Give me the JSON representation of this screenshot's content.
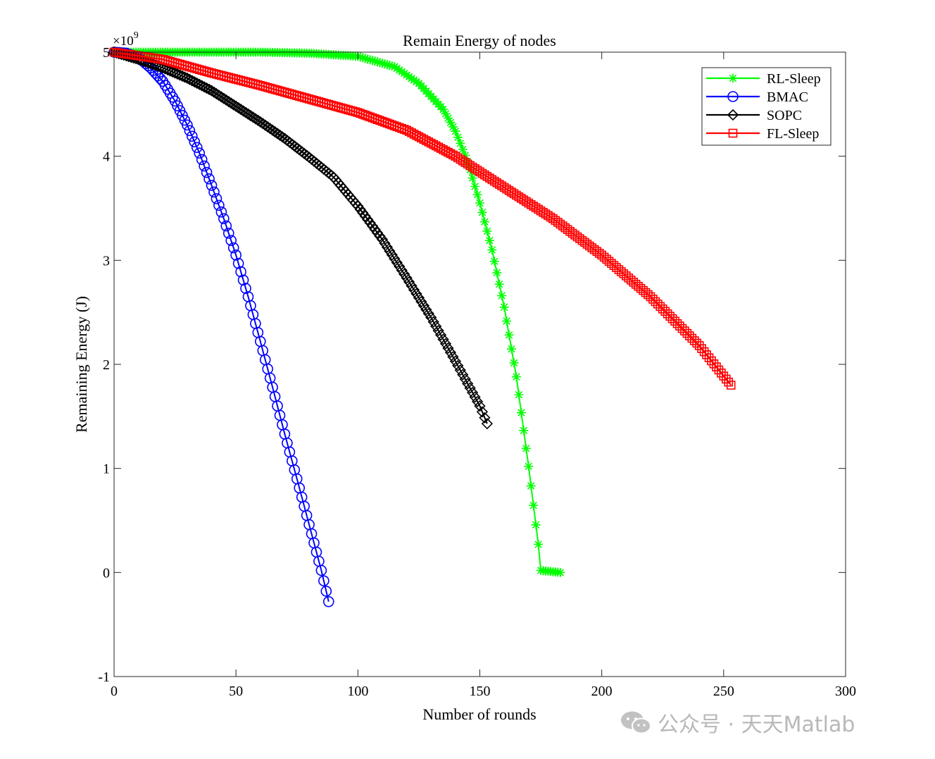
{
  "chart_data": {
    "type": "line",
    "title": "Remain Energy of nodes",
    "xlabel": "Number of rounds",
    "ylabel": "Remaining Energy (J)",
    "y_exponent_label": "×10",
    "y_exponent_power": "9",
    "xlim": [
      0,
      300
    ],
    "ylim": [
      -1,
      5
    ],
    "xticks": [
      0,
      50,
      100,
      150,
      200,
      250,
      300
    ],
    "yticks": [
      -1,
      0,
      1,
      2,
      3,
      4,
      5
    ],
    "xtick_labels": [
      "0",
      "50",
      "100",
      "150",
      "200",
      "250",
      "300"
    ],
    "ytick_labels": [
      "-1",
      "0",
      "1",
      "2",
      "3",
      "4",
      "5"
    ],
    "legend_position": "top-right",
    "series": [
      {
        "name": "RL-Sleep",
        "color": "#00ff00",
        "marker": "asterisk",
        "x_end": 183,
        "marker_step": 1,
        "anchors": [
          [
            0,
            5.0
          ],
          [
            30,
            5.0
          ],
          [
            60,
            5.0
          ],
          [
            80,
            4.99
          ],
          [
            100,
            4.96
          ],
          [
            115,
            4.86
          ],
          [
            125,
            4.7
          ],
          [
            135,
            4.45
          ],
          [
            140,
            4.24
          ],
          [
            145,
            3.95
          ],
          [
            150,
            3.55
          ],
          [
            155,
            3.1
          ],
          [
            160,
            2.55
          ],
          [
            165,
            1.88
          ],
          [
            170,
            1.02
          ],
          [
            174,
            0.27
          ],
          [
            175,
            0.02
          ],
          [
            183,
            0.0
          ]
        ]
      },
      {
        "name": "BMAC",
        "color": "#0000ff",
        "marker": "circle",
        "x_end": 88,
        "marker_step": 1,
        "anchors": [
          [
            0,
            5.0
          ],
          [
            5,
            4.99
          ],
          [
            10,
            4.95
          ],
          [
            15,
            4.85
          ],
          [
            20,
            4.72
          ],
          [
            25,
            4.53
          ],
          [
            30,
            4.3
          ],
          [
            35,
            4.03
          ],
          [
            40,
            3.72
          ],
          [
            45,
            3.4
          ],
          [
            50,
            3.05
          ],
          [
            55,
            2.65
          ],
          [
            60,
            2.22
          ],
          [
            65,
            1.78
          ],
          [
            70,
            1.33
          ],
          [
            75,
            0.9
          ],
          [
            80,
            0.46
          ],
          [
            85,
            0.02
          ],
          [
            88,
            -0.28
          ]
        ]
      },
      {
        "name": "SOPC",
        "color": "#000000",
        "marker": "diamond",
        "x_end": 153,
        "marker_step": 1,
        "anchors": [
          [
            0,
            5.0
          ],
          [
            10,
            4.93
          ],
          [
            20,
            4.85
          ],
          [
            30,
            4.75
          ],
          [
            40,
            4.63
          ],
          [
            50,
            4.48
          ],
          [
            60,
            4.33
          ],
          [
            70,
            4.17
          ],
          [
            80,
            3.99
          ],
          [
            90,
            3.8
          ],
          [
            100,
            3.52
          ],
          [
            110,
            3.2
          ],
          [
            120,
            2.83
          ],
          [
            130,
            2.45
          ],
          [
            140,
            2.03
          ],
          [
            150,
            1.6
          ],
          [
            153,
            1.43
          ]
        ]
      },
      {
        "name": "FL-Sleep",
        "color": "#ff0000",
        "marker": "square",
        "x_end": 253,
        "marker_step": 1,
        "anchors": [
          [
            0,
            5.0
          ],
          [
            20,
            4.93
          ],
          [
            40,
            4.8
          ],
          [
            60,
            4.68
          ],
          [
            80,
            4.55
          ],
          [
            100,
            4.42
          ],
          [
            120,
            4.25
          ],
          [
            140,
            4.0
          ],
          [
            160,
            3.7
          ],
          [
            180,
            3.4
          ],
          [
            200,
            3.05
          ],
          [
            220,
            2.65
          ],
          [
            240,
            2.18
          ],
          [
            253,
            1.8
          ]
        ]
      }
    ]
  },
  "watermark": {
    "text": "公众号 · 天天Matlab"
  }
}
